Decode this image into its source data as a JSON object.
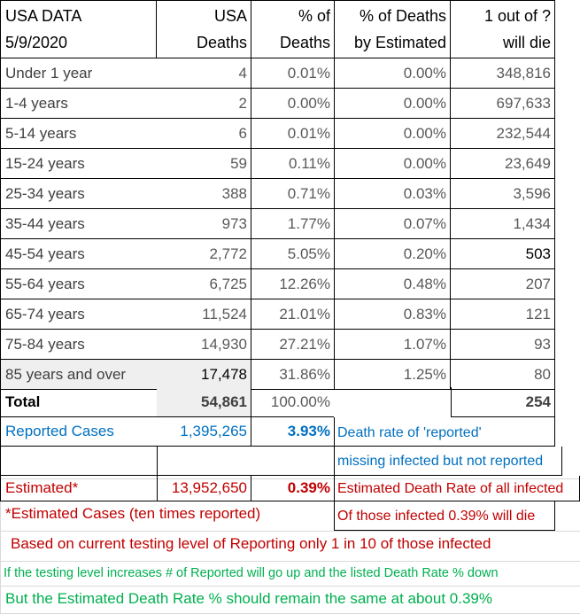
{
  "header": {
    "title_line1": "USA DATA",
    "title_line2": "5/9/2020",
    "col_usa_1": "USA",
    "col_usa_2": "Deaths",
    "col_pct_1": "% of",
    "col_pct_2": "Deaths",
    "col_est_1": "% of Deaths",
    "col_est_2": "by Estimated",
    "col_odds_1": "1 out of ?",
    "col_odds_2": "will die"
  },
  "rows": [
    {
      "age": "Under 1 year",
      "deaths": "4",
      "pct": "0.01%",
      "est": "0.00%",
      "odds": "348,816"
    },
    {
      "age": "1-4 years",
      "deaths": "2",
      "pct": "0.00%",
      "est": "0.00%",
      "odds": "697,633"
    },
    {
      "age": "5-14 years",
      "deaths": "6",
      "pct": "0.01%",
      "est": "0.00%",
      "odds": "232,544"
    },
    {
      "age": "15-24 years",
      "deaths": "59",
      "pct": "0.11%",
      "est": "0.00%",
      "odds": "23,649"
    },
    {
      "age": "25-34 years",
      "deaths": "388",
      "pct": "0.71%",
      "est": "0.03%",
      "odds": "3,596"
    },
    {
      "age": "35-44 years",
      "deaths": "973",
      "pct": "1.77%",
      "est": "0.07%",
      "odds": "1,434"
    },
    {
      "age": "45-54 years",
      "deaths": "2,772",
      "pct": "5.05%",
      "est": "0.20%",
      "odds": "503"
    },
    {
      "age": "55-64 years",
      "deaths": "6,725",
      "pct": "12.26%",
      "est": "0.48%",
      "odds": "207"
    },
    {
      "age": "65-74 years",
      "deaths": "11,524",
      "pct": "21.01%",
      "est": "0.83%",
      "odds": "121"
    },
    {
      "age": "75-84 years",
      "deaths": "14,930",
      "pct": "27.21%",
      "est": "1.07%",
      "odds": "93"
    },
    {
      "age": "85 years and over",
      "deaths": "17,478",
      "pct": "31.86%",
      "est": "1.25%",
      "odds": "80"
    }
  ],
  "total": {
    "label": "Total",
    "deaths": "54,861",
    "pct": "100.00%",
    "odds": "254"
  },
  "reported": {
    "label": "Reported Cases",
    "cases": "1,395,265",
    "rate": "3.93%",
    "note_1": "Death rate of 'reported'",
    "note_2": "missing infected but not reported"
  },
  "estimated": {
    "label": "Estimated*",
    "cases": "13,952,650",
    "rate": "0.39%",
    "note": "Estimated Death Rate of all infected"
  },
  "footnotes": {
    "asterisk": "*Estimated Cases (ten times reported)",
    "infected": "Of those infected 0.39% will die",
    "testing_level": "Based on current testing level of Reporting only 1 in 10 of those infected",
    "increase": "If the testing level increases # of Reported will go up and the listed Death Rate % down",
    "remain": "But the Estimated Death Rate % should remain the same at about 0.39%"
  },
  "colors": {
    "blue": "#0070c0",
    "red": "#c00000",
    "green": "#00b050",
    "highlight": "#efefef"
  }
}
